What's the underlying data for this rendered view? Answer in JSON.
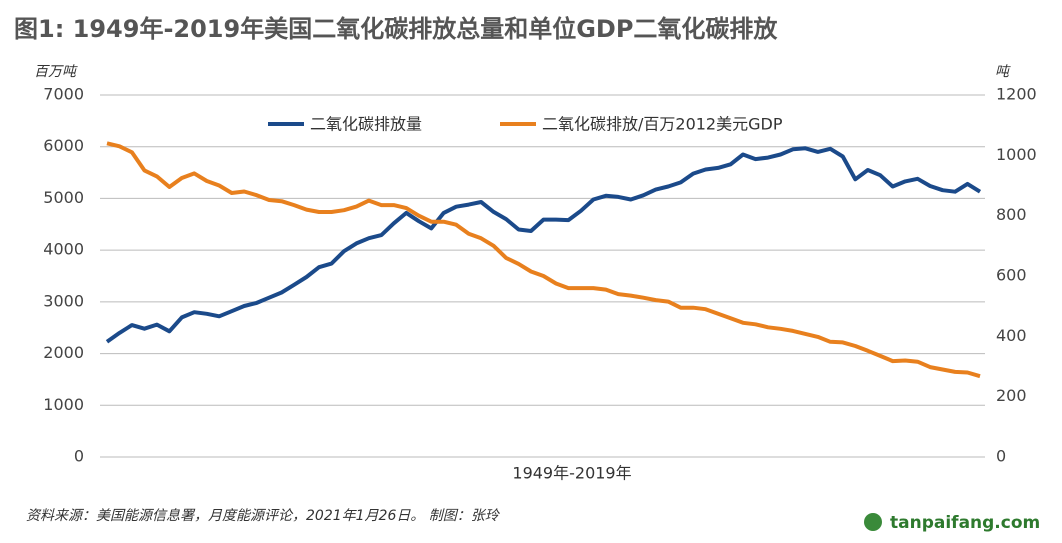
{
  "chart_data": {
    "type": "line",
    "title": "图1: 1949年-2019年美国二氧化碳排放总量和单位GDP二氧化碳排放",
    "y_label": "百万吨",
    "y2_label": "吨",
    "x_label": "1949年-2019年",
    "source": "资料来源：美国能源信息署，月度能源评论，2021年1月26日。      制图：张玲",
    "watermark": "tanpaifang.com",
    "ylim": [
      0,
      7000
    ],
    "yticks": [
      0,
      1000,
      2000,
      3000,
      4000,
      5000,
      6000,
      7000
    ],
    "y2lim": [
      0,
      1200
    ],
    "y2ticks": [
      0,
      200,
      400,
      600,
      800,
      1000,
      1200
    ],
    "grid": true,
    "series": [
      {
        "name": "二氧化碳排放量",
        "color": "#1b4a8a",
        "values": [
          2230,
          2400,
          2550,
          2480,
          2560,
          2430,
          2700,
          2800,
          2770,
          2720,
          2820,
          2920,
          2980,
          3080,
          3180,
          3330,
          3480,
          3670,
          3740,
          3980,
          4130,
          4230,
          4290,
          4520,
          4720,
          4560,
          4420,
          4720,
          4840,
          4880,
          4930,
          4740,
          4600,
          4400,
          4370,
          4590,
          4590,
          4580,
          4760,
          4980,
          5050,
          5030,
          4980,
          5060,
          5170,
          5230,
          5310,
          5480,
          5560,
          5590,
          5660,
          5850,
          5760,
          5790,
          5850,
          5950,
          5970,
          5900,
          5960,
          5810,
          5370,
          5550,
          5450,
          5230,
          5330,
          5380,
          5240,
          5160,
          5130,
          5280,
          5130
        ]
      },
      {
        "name": "二氧化碳排放/百万2012美元GDP",
        "color": "#e8801e",
        "axis": "y2",
        "values": [
          1040,
          1030,
          1010,
          950,
          930,
          895,
          925,
          940,
          915,
          900,
          875,
          880,
          868,
          852,
          848,
          835,
          820,
          812,
          812,
          818,
          830,
          850,
          835,
          835,
          825,
          800,
          780,
          780,
          770,
          740,
          725,
          700,
          660,
          640,
          615,
          600,
          575,
          560,
          560,
          560,
          555,
          540,
          535,
          528,
          520,
          515,
          495,
          495,
          490,
          475,
          460,
          445,
          440,
          430,
          425,
          418,
          408,
          398,
          382,
          380,
          368,
          352,
          335,
          318,
          320,
          316,
          298,
          290,
          282,
          280,
          268
        ]
      }
    ]
  }
}
